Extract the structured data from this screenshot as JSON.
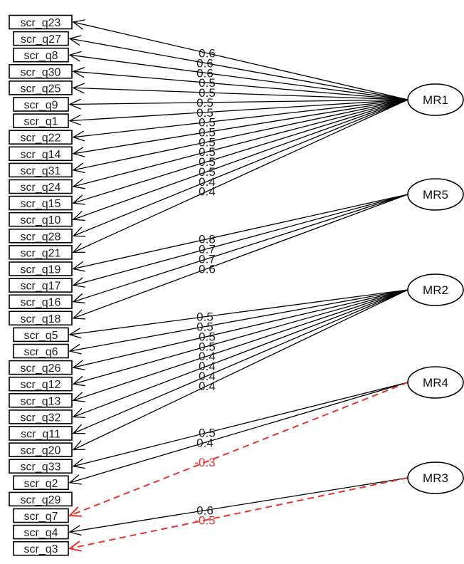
{
  "diagram": {
    "type": "factor-analysis-path-diagram",
    "colors": {
      "positive": "#000000",
      "negative": "#e8332e"
    },
    "factors": [
      {
        "id": "MR1",
        "label": "MR1"
      },
      {
        "id": "MR5",
        "label": "MR5"
      },
      {
        "id": "MR2",
        "label": "MR2"
      },
      {
        "id": "MR4",
        "label": "MR4"
      },
      {
        "id": "MR3",
        "label": "MR3"
      }
    ],
    "items": [
      {
        "id": "scr_q23",
        "label": "scr_q23"
      },
      {
        "id": "scr_q27",
        "label": "scr_q27"
      },
      {
        "id": "scr_q8",
        "label": "scr_q8"
      },
      {
        "id": "scr_q30",
        "label": "scr_q30"
      },
      {
        "id": "scr_q25",
        "label": "scr_q25"
      },
      {
        "id": "scr_q9",
        "label": "scr_q9"
      },
      {
        "id": "scr_q1",
        "label": "scr_q1"
      },
      {
        "id": "scr_q22",
        "label": "scr_q22"
      },
      {
        "id": "scr_q14",
        "label": "scr_q14"
      },
      {
        "id": "scr_q31",
        "label": "scr_q31"
      },
      {
        "id": "scr_q24",
        "label": "scr_q24"
      },
      {
        "id": "scr_q15",
        "label": "scr_q15"
      },
      {
        "id": "scr_q10",
        "label": "scr_q10"
      },
      {
        "id": "scr_q28",
        "label": "scr_q28"
      },
      {
        "id": "scr_q21",
        "label": "scr_q21"
      },
      {
        "id": "scr_q19",
        "label": "scr_q19"
      },
      {
        "id": "scr_q17",
        "label": "scr_q17"
      },
      {
        "id": "scr_q16",
        "label": "scr_q16"
      },
      {
        "id": "scr_q18",
        "label": "scr_q18"
      },
      {
        "id": "scr_q5",
        "label": "scr_q5"
      },
      {
        "id": "scr_q6",
        "label": "scr_q6"
      },
      {
        "id": "scr_q26",
        "label": "scr_q26"
      },
      {
        "id": "scr_q12",
        "label": "scr_q12"
      },
      {
        "id": "scr_q13",
        "label": "scr_q13"
      },
      {
        "id": "scr_q32",
        "label": "scr_q32"
      },
      {
        "id": "scr_q11",
        "label": "scr_q11"
      },
      {
        "id": "scr_q20",
        "label": "scr_q20"
      },
      {
        "id": "scr_q33",
        "label": "scr_q33"
      },
      {
        "id": "scr_q2",
        "label": "scr_q2"
      },
      {
        "id": "scr_q29",
        "label": "scr_q29"
      },
      {
        "id": "scr_q7",
        "label": "scr_q7"
      },
      {
        "id": "scr_q4",
        "label": "scr_q4"
      },
      {
        "id": "scr_q3",
        "label": "scr_q3"
      }
    ],
    "loadings": [
      {
        "factor": "MR1",
        "item": "scr_q23",
        "value": "0.6",
        "negative": false
      },
      {
        "factor": "MR1",
        "item": "scr_q27",
        "value": "0.6",
        "negative": false
      },
      {
        "factor": "MR1",
        "item": "scr_q8",
        "value": "0.6",
        "negative": false
      },
      {
        "factor": "MR1",
        "item": "scr_q30",
        "value": "0.5",
        "negative": false
      },
      {
        "factor": "MR1",
        "item": "scr_q25",
        "value": "0.5",
        "negative": false
      },
      {
        "factor": "MR1",
        "item": "scr_q9",
        "value": "0.5",
        "negative": false
      },
      {
        "factor": "MR1",
        "item": "scr_q1",
        "value": "0.5",
        "negative": false
      },
      {
        "factor": "MR1",
        "item": "scr_q22",
        "value": "0.5",
        "negative": false
      },
      {
        "factor": "MR1",
        "item": "scr_q14",
        "value": "0.5",
        "negative": false
      },
      {
        "factor": "MR1",
        "item": "scr_q31",
        "value": "0.5",
        "negative": false
      },
      {
        "factor": "MR1",
        "item": "scr_q24",
        "value": "0.5",
        "negative": false
      },
      {
        "factor": "MR1",
        "item": "scr_q15",
        "value": "0.5",
        "negative": false
      },
      {
        "factor": "MR1",
        "item": "scr_q10",
        "value": "0.5",
        "negative": false
      },
      {
        "factor": "MR1",
        "item": "scr_q28",
        "value": "0.4",
        "negative": false
      },
      {
        "factor": "MR1",
        "item": "scr_q21",
        "value": "0.4",
        "negative": false
      },
      {
        "factor": "MR5",
        "item": "scr_q19",
        "value": "0.8",
        "negative": false
      },
      {
        "factor": "MR5",
        "item": "scr_q17",
        "value": "0.7",
        "negative": false
      },
      {
        "factor": "MR5",
        "item": "scr_q16",
        "value": "0.7",
        "negative": false
      },
      {
        "factor": "MR5",
        "item": "scr_q18",
        "value": "0.6",
        "negative": false
      },
      {
        "factor": "MR2",
        "item": "scr_q5",
        "value": "0.5",
        "negative": false
      },
      {
        "factor": "MR2",
        "item": "scr_q6",
        "value": "0.5",
        "negative": false
      },
      {
        "factor": "MR2",
        "item": "scr_q26",
        "value": "0.5",
        "negative": false
      },
      {
        "factor": "MR2",
        "item": "scr_q12",
        "value": "0.5",
        "negative": false
      },
      {
        "factor": "MR2",
        "item": "scr_q13",
        "value": "0.4",
        "negative": false
      },
      {
        "factor": "MR2",
        "item": "scr_q32",
        "value": "0.4",
        "negative": false
      },
      {
        "factor": "MR2",
        "item": "scr_q11",
        "value": "0.4",
        "negative": false
      },
      {
        "factor": "MR2",
        "item": "scr_q20",
        "value": "0.4",
        "negative": false
      },
      {
        "factor": "MR4",
        "item": "scr_q33",
        "value": "0.5",
        "negative": false
      },
      {
        "factor": "MR4",
        "item": "scr_q2",
        "value": "0.4",
        "negative": false
      },
      {
        "factor": "MR4",
        "item": "scr_q7",
        "value": "-0.3",
        "negative": true
      },
      {
        "factor": "MR3",
        "item": "scr_q4",
        "value": "0.6",
        "negative": false
      },
      {
        "factor": "MR3",
        "item": "scr_q3",
        "value": "-0.5",
        "negative": true
      }
    ]
  }
}
